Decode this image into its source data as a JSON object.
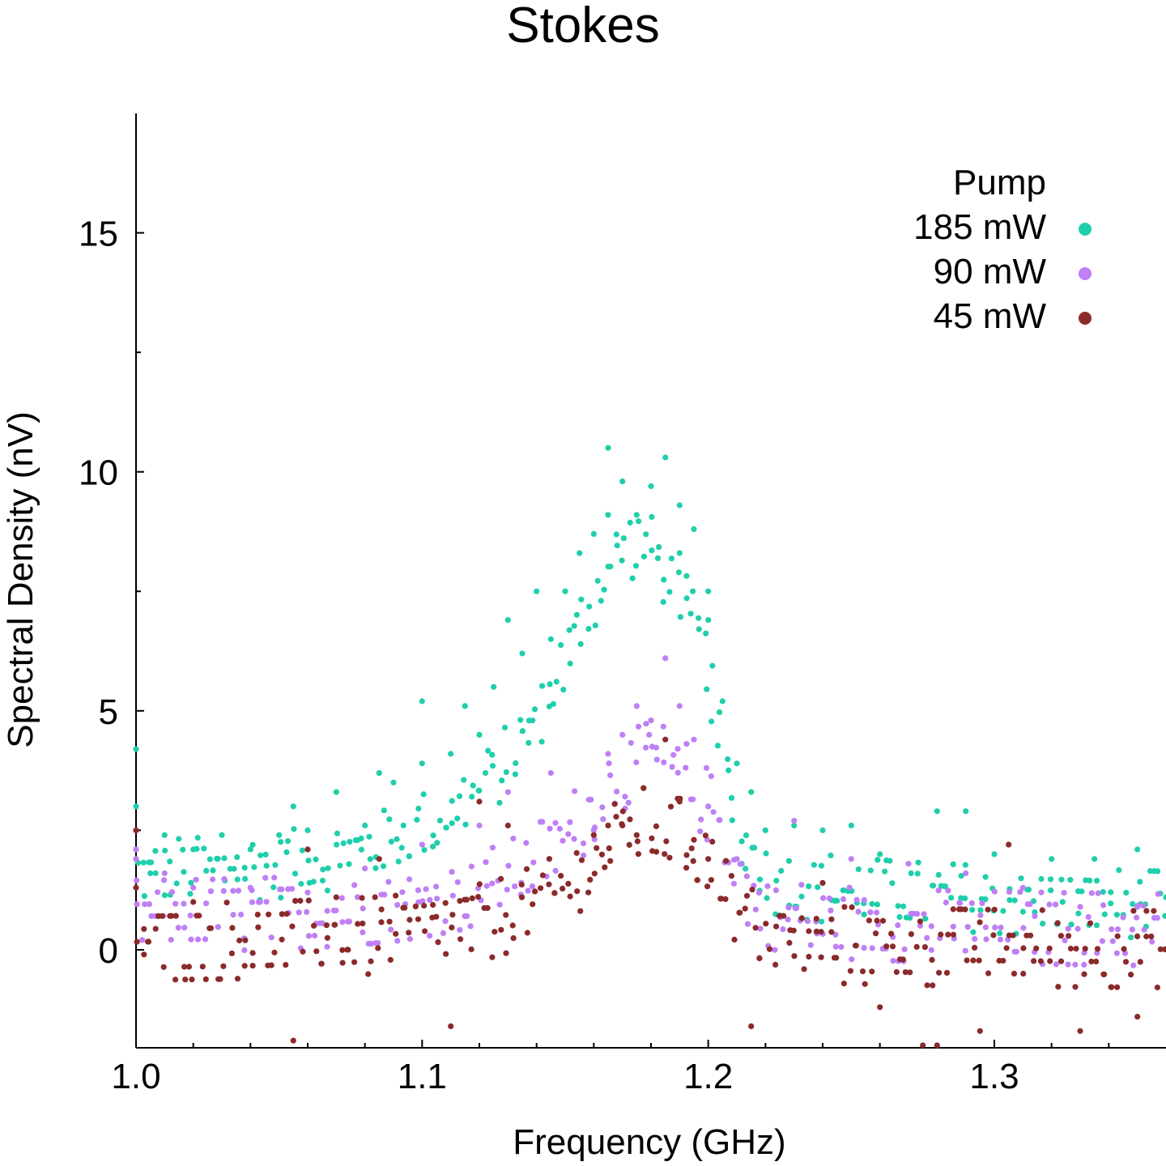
{
  "chart_data": {
    "type": "scatter",
    "title": "Stokes",
    "xlabel": "Frequency (GHz)",
    "ylabel": "Spectral Density (nV)",
    "xlim": [
      1.0,
      1.36
    ],
    "ylim": [
      -2.05,
      17.5
    ],
    "xticks": [
      1.0,
      1.1,
      1.2,
      1.3
    ],
    "xtick_labels": [
      "1.0",
      "1.1",
      "1.2",
      "1.3"
    ],
    "yticks": [
      0,
      5,
      10,
      15
    ],
    "ytick_labels": [
      "0",
      "5",
      "10",
      "15"
    ],
    "grid": false,
    "legend": {
      "title": "Pump",
      "placement": "top-right"
    },
    "series": [
      {
        "name": "185 mW",
        "color": "#1fcfab",
        "peak": {
          "x": 1.175,
          "y": 8.5
        },
        "baseline": {
          "x": 1.0,
          "y": 1.3
        },
        "tail_baseline": {
          "x": 1.36,
          "y": 0.9
        },
        "half_width_ghz": 0.045,
        "spread": 0.7,
        "points": [
          [
            1.0,
            4.2
          ],
          [
            1.0,
            3.0
          ],
          [
            1.005,
            1.6
          ],
          [
            1.01,
            2.4
          ],
          [
            1.02,
            2.1
          ],
          [
            1.03,
            2.4
          ],
          [
            1.04,
            2.1
          ],
          [
            1.05,
            2.4
          ],
          [
            1.055,
            3.0
          ],
          [
            1.06,
            2.5
          ],
          [
            1.07,
            3.3
          ],
          [
            1.08,
            2.6
          ],
          [
            1.085,
            3.7
          ],
          [
            1.09,
            3.5
          ],
          [
            1.1,
            3.9
          ],
          [
            1.1,
            5.2
          ],
          [
            1.11,
            4.1
          ],
          [
            1.115,
            5.1
          ],
          [
            1.12,
            4.5
          ],
          [
            1.125,
            5.5
          ],
          [
            1.13,
            6.9
          ],
          [
            1.135,
            6.2
          ],
          [
            1.14,
            7.5
          ],
          [
            1.145,
            6.5
          ],
          [
            1.15,
            7.5
          ],
          [
            1.155,
            8.3
          ],
          [
            1.16,
            8.7
          ],
          [
            1.165,
            9.1
          ],
          [
            1.165,
            10.5
          ],
          [
            1.17,
            9.8
          ],
          [
            1.175,
            9.1
          ],
          [
            1.18,
            9.7
          ],
          [
            1.185,
            10.3
          ],
          [
            1.19,
            9.3
          ],
          [
            1.19,
            8.3
          ],
          [
            1.195,
            8.8
          ],
          [
            1.2,
            7.5
          ],
          [
            1.2,
            6.9
          ],
          [
            1.205,
            5.2
          ],
          [
            1.21,
            3.9
          ],
          [
            1.215,
            3.3
          ],
          [
            1.22,
            2.5
          ],
          [
            1.23,
            2.6
          ],
          [
            1.24,
            2.5
          ],
          [
            1.25,
            2.6
          ],
          [
            1.26,
            2.0
          ],
          [
            1.28,
            2.9
          ],
          [
            1.29,
            2.9
          ],
          [
            1.3,
            2.0
          ],
          [
            1.32,
            1.9
          ],
          [
            1.335,
            1.9
          ],
          [
            1.35,
            2.1
          ],
          [
            1.36,
            1.1
          ]
        ]
      },
      {
        "name": "90 mW",
        "color": "#bf7ff5",
        "peak": {
          "x": 1.18,
          "y": 4.0
        },
        "baseline": {
          "x": 1.0,
          "y": 0.6
        },
        "tail_baseline": {
          "x": 1.36,
          "y": 0.4
        },
        "half_width_ghz": 0.04,
        "spread": 0.75,
        "points": [
          [
            1.0,
            2.1
          ],
          [
            1.0,
            1.9
          ],
          [
            1.01,
            1.6
          ],
          [
            1.02,
            1.3
          ],
          [
            1.04,
            1.3
          ],
          [
            1.06,
            1.2
          ],
          [
            1.08,
            1.7
          ],
          [
            1.1,
            2.2
          ],
          [
            1.12,
            2.6
          ],
          [
            1.13,
            3.3
          ],
          [
            1.145,
            3.7
          ],
          [
            1.16,
            2.5
          ],
          [
            1.165,
            4.1
          ],
          [
            1.17,
            4.5
          ],
          [
            1.175,
            5.1
          ],
          [
            1.18,
            4.8
          ],
          [
            1.185,
            6.1
          ],
          [
            1.19,
            5.1
          ],
          [
            1.195,
            4.4
          ],
          [
            1.2,
            3.0
          ],
          [
            1.21,
            1.9
          ],
          [
            1.23,
            2.7
          ],
          [
            1.25,
            1.9
          ],
          [
            1.27,
            1.8
          ],
          [
            1.29,
            1.6
          ],
          [
            1.31,
            1.3
          ],
          [
            1.33,
            0.9
          ],
          [
            1.35,
            0.9
          ]
        ]
      },
      {
        "name": "45 mW",
        "color": "#8b2a2a",
        "peak": {
          "x": 1.18,
          "y": 2.6
        },
        "baseline": {
          "x": 1.0,
          "y": 0.1
        },
        "tail_baseline": {
          "x": 1.36,
          "y": 0.0
        },
        "half_width_ghz": 0.038,
        "spread": 0.8,
        "points": [
          [
            1.0,
            2.5
          ],
          [
            1.0,
            1.3
          ],
          [
            1.02,
            1.0
          ],
          [
            1.055,
            -1.9
          ],
          [
            1.06,
            2.1
          ],
          [
            1.07,
            1.1
          ],
          [
            1.085,
            1.9
          ],
          [
            1.11,
            -1.6
          ],
          [
            1.12,
            3.1
          ],
          [
            1.13,
            2.6
          ],
          [
            1.16,
            2.4
          ],
          [
            1.165,
            2.6
          ],
          [
            1.17,
            2.6
          ],
          [
            1.175,
            2.4
          ],
          [
            1.185,
            4.4
          ],
          [
            1.19,
            3.1
          ],
          [
            1.195,
            2.3
          ],
          [
            1.2,
            1.9
          ],
          [
            1.215,
            -1.6
          ],
          [
            1.24,
            1.4
          ],
          [
            1.26,
            -1.2
          ],
          [
            1.275,
            -2.0
          ],
          [
            1.28,
            -2.0
          ],
          [
            1.295,
            -1.7
          ],
          [
            1.305,
            2.2
          ],
          [
            1.33,
            -1.7
          ],
          [
            1.35,
            -1.4
          ]
        ]
      }
    ]
  }
}
